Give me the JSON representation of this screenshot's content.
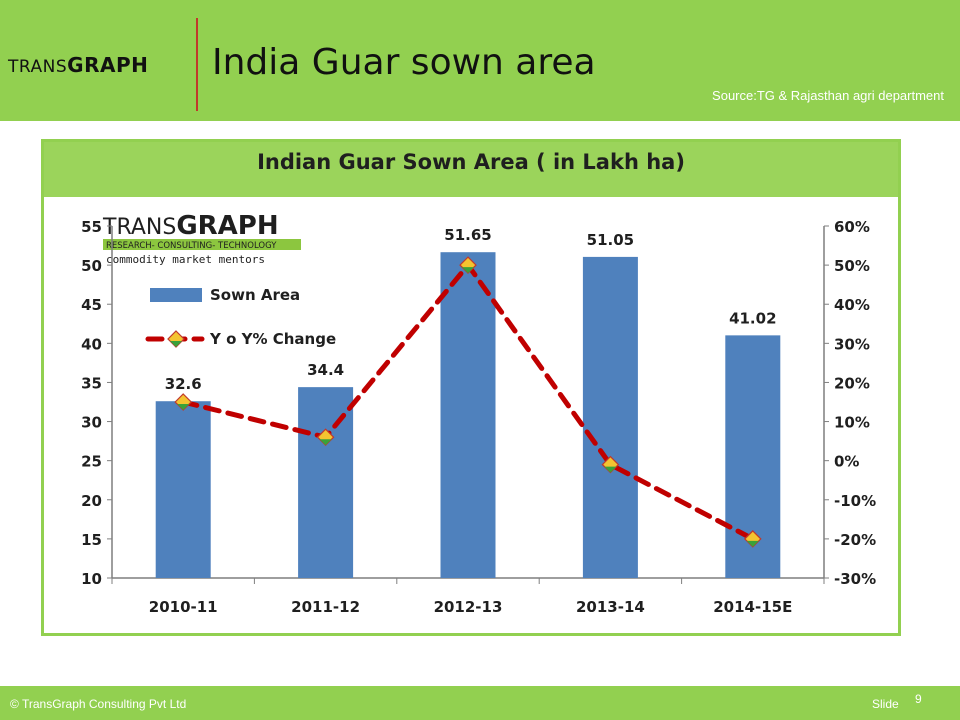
{
  "header": {
    "logo_prefix": "TRANS",
    "logo_suffix": "GRAPH",
    "title": "India Guar sown area",
    "source": "Source:TG & Rajasthan agri department"
  },
  "chart_logo": {
    "name_prefix": "TRANS",
    "name_suffix": "GRAPH",
    "tagline": "RESEARCH- CONSULTING- TECHNOLOGY",
    "motto": "commodity market mentors"
  },
  "footer": {
    "copyright": "© TransGraph Consulting Pvt Ltd",
    "slide_label": "Slide",
    "slide_number": "9"
  },
  "colors": {
    "header_green": "#92d050",
    "bar_blue": "#4f81bd",
    "line_red": "#c00000"
  },
  "chart_data": {
    "type": "bar",
    "title": "Indian Guar Sown Area ( in Lakh ha)",
    "categories": [
      "2010-11",
      "2011-12",
      "2012-13",
      "2013-14",
      "2014-15E"
    ],
    "series": [
      {
        "name": "Sown Area",
        "type": "bar",
        "axis": "left",
        "values": [
          32.6,
          34.4,
          51.65,
          51.05,
          41.02
        ],
        "labels": [
          "32.6",
          "34.4",
          "51.65",
          "51.05",
          "41.02"
        ]
      },
      {
        "name": "Y o Y% Change",
        "type": "line",
        "axis": "right",
        "values": [
          15,
          6,
          50,
          -1,
          -20
        ]
      }
    ],
    "y_left": {
      "min": 10,
      "max": 55,
      "ticks": [
        "10",
        "15",
        "20",
        "25",
        "30",
        "35",
        "40",
        "45",
        "50",
        "55"
      ]
    },
    "y_right": {
      "min": -30,
      "max": 60,
      "ticks": [
        "-30%",
        "-20%",
        "-10%",
        "0%",
        "10%",
        "20%",
        "30%",
        "40%",
        "50%",
        "60%"
      ]
    },
    "legend_position": "top-left",
    "grid": false
  }
}
